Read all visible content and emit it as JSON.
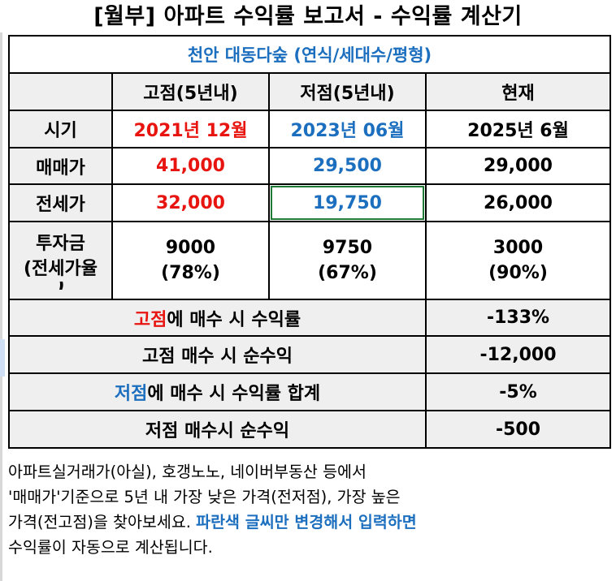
{
  "title": "[월부] 아파트 수익률 보고서 - 수익률 계산기",
  "subtitle": "천안 대동다숲 (연식/세대수/평형)",
  "headers": {
    "high": "고점(5년내)",
    "low": "저점(5년내)",
    "now": "현재"
  },
  "rows": {
    "period": {
      "label": "시기",
      "high": "2021년 12월",
      "low": "2023년 06월",
      "now": "2025년 6월"
    },
    "sale": {
      "label": "매매가",
      "high": "41,000",
      "low": "29,500",
      "now": "29,000"
    },
    "jeonse": {
      "label": "전세가",
      "high": "32,000",
      "low": "19,750",
      "now": "26,000"
    },
    "investment": {
      "label_line1": "투자금",
      "label_line2": "(전세가율",
      "label_line3": ")",
      "high_amount": "9000",
      "high_ratio": "(78%)",
      "low_amount": "9750",
      "low_ratio": "(67%)",
      "now_amount": "3000",
      "now_ratio": "(90%)"
    }
  },
  "summary": {
    "high_return": {
      "highlight": "고점",
      "rest": "에 매수 시 수익률",
      "value": "-133%"
    },
    "high_profit": {
      "label": "고점 매수 시 순수익",
      "value": "-12,000"
    },
    "low_return": {
      "highlight": "저점",
      "rest": "에 매수 시 수익률 합계",
      "value": "-5%"
    },
    "low_profit": {
      "label": "저점 매수시 순수익",
      "value": "-500"
    }
  },
  "note": {
    "line1": "아파트실거래가(아실), 호갱노노, 네이버부동산 등에서",
    "line2": "'매매가'기준으로 5년 내 가장 낮은 가격(전저점), 가장 높은",
    "line3_plain": "가격(전고점)을 찾아보세요. ",
    "line3_blue": "파란색 글씨만 변경해서 입력하면",
    "line4": "수익률이 자동으로 계산됩니다."
  },
  "colors": {
    "red": "#e8140f",
    "blue": "#1c6fbf",
    "gray_fill": "#efefef",
    "selection": "#1e7a35"
  }
}
